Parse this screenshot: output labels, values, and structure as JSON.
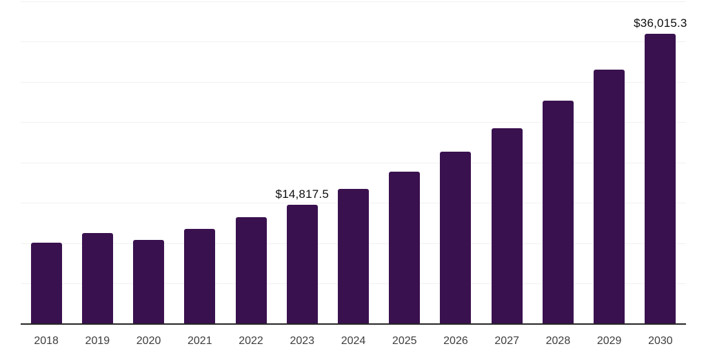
{
  "chart_data": {
    "type": "bar",
    "title": "",
    "xlabel": "",
    "ylabel": "",
    "categories": [
      "2018",
      "2019",
      "2020",
      "2021",
      "2022",
      "2023",
      "2024",
      "2025",
      "2026",
      "2027",
      "2028",
      "2029",
      "2030"
    ],
    "values": [
      10100,
      11250,
      10450,
      11800,
      13250,
      14817.5,
      16750,
      18900,
      21350,
      24250,
      27700,
      31550,
      36015.3
    ],
    "data_labels": [
      "",
      "",
      "",
      "",
      "",
      "$14,817.5",
      "",
      "",
      "",
      "",
      "",
      "",
      "$36,015.3"
    ],
    "ylim": [
      0,
      40000
    ],
    "gridline_interval": 5000,
    "grid": "horizontal",
    "y_axis_labels_visible": false,
    "legend_position": "none",
    "colors": {
      "bar": "#3A114F",
      "axis": "#262626",
      "gridline": "#F1F1F1",
      "tick_label": "#3D3D3D",
      "value_label": "#0D0D0D",
      "background": "#FFFFFF"
    }
  }
}
